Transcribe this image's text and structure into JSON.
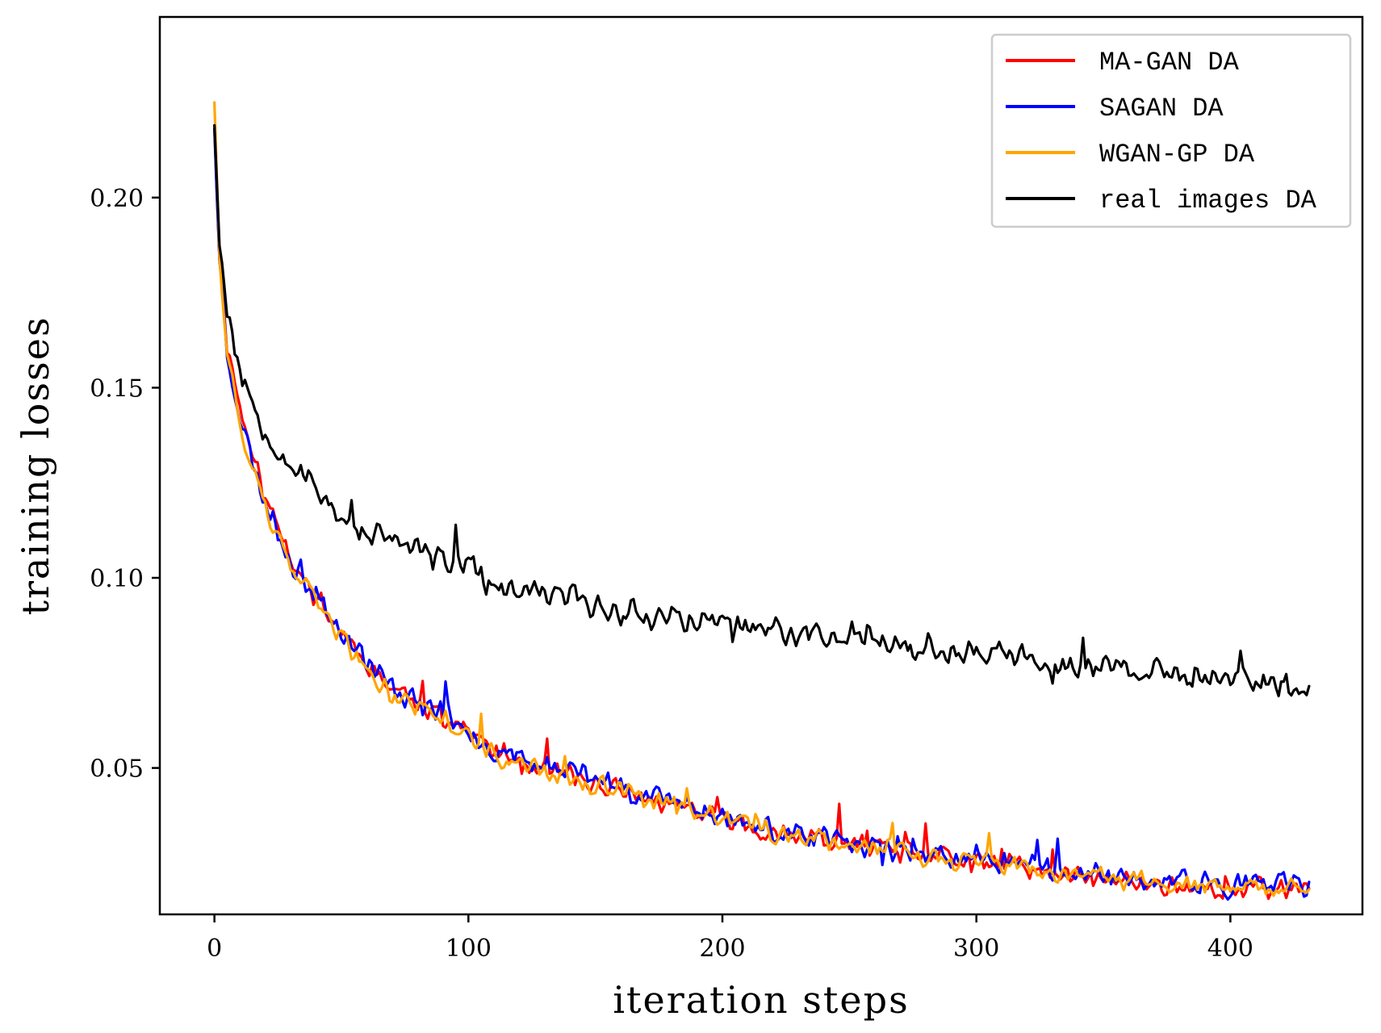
{
  "chart_data": {
    "type": "line",
    "title": "",
    "xlabel": "iteration steps",
    "ylabel": "training losses",
    "xlim": [
      -21.5,
      452
    ],
    "ylim": [
      0.0115,
      0.2475
    ],
    "xticks": [
      0,
      100,
      200,
      300,
      400
    ],
    "xtick_labels": [
      "0",
      "100",
      "200",
      "300",
      "400"
    ],
    "yticks": [
      0.05,
      0.1,
      0.15,
      0.2
    ],
    "ytick_labels": [
      "0.05",
      "0.10",
      "0.15",
      "0.20"
    ],
    "grid": false,
    "legend_position": "top-right",
    "n_points": 432,
    "series": [
      {
        "name": "MA-GAN DA",
        "color": "#ff0000",
        "anchors_x": [
          0,
          2,
          5,
          10,
          15,
          20,
          30,
          40,
          50,
          60,
          70,
          80,
          90,
          100,
          110,
          120,
          140,
          160,
          180,
          200,
          220,
          240,
          260,
          280,
          300,
          320,
          340,
          360,
          380,
          400,
          431
        ],
        "anchors_y": [
          0.218,
          0.185,
          0.162,
          0.145,
          0.132,
          0.121,
          0.106,
          0.095,
          0.086,
          0.078,
          0.071,
          0.068,
          0.064,
          0.06,
          0.054,
          0.052,
          0.048,
          0.044,
          0.04,
          0.037,
          0.033,
          0.031,
          0.029,
          0.027,
          0.025,
          0.024,
          0.021,
          0.02,
          0.019,
          0.018,
          0.019
        ],
        "noise": 0.0035,
        "seed": 11
      },
      {
        "name": "SAGAN DA",
        "color": "#0000ff",
        "anchors_x": [
          0,
          2,
          5,
          10,
          15,
          20,
          30,
          40,
          50,
          60,
          70,
          80,
          90,
          100,
          110,
          120,
          140,
          160,
          180,
          200,
          220,
          240,
          260,
          280,
          300,
          320,
          340,
          360,
          380,
          400,
          431
        ],
        "anchors_y": [
          0.218,
          0.184,
          0.16,
          0.143,
          0.13,
          0.12,
          0.105,
          0.095,
          0.087,
          0.078,
          0.071,
          0.068,
          0.065,
          0.061,
          0.054,
          0.053,
          0.049,
          0.045,
          0.041,
          0.038,
          0.033,
          0.031,
          0.03,
          0.027,
          0.026,
          0.025,
          0.022,
          0.021,
          0.02,
          0.019,
          0.019
        ],
        "noise": 0.004,
        "seed": 23
      },
      {
        "name": "WGAN-GP DA",
        "color": "#ffa500",
        "anchors_x": [
          0,
          2,
          5,
          10,
          15,
          20,
          30,
          40,
          50,
          60,
          70,
          80,
          90,
          100,
          110,
          120,
          140,
          160,
          180,
          200,
          220,
          240,
          260,
          280,
          300,
          320,
          340,
          360,
          380,
          400,
          431
        ],
        "anchors_y": [
          0.225,
          0.186,
          0.16,
          0.141,
          0.128,
          0.118,
          0.103,
          0.093,
          0.085,
          0.075,
          0.069,
          0.066,
          0.063,
          0.059,
          0.053,
          0.051,
          0.047,
          0.044,
          0.04,
          0.037,
          0.033,
          0.031,
          0.03,
          0.027,
          0.025,
          0.024,
          0.021,
          0.021,
          0.019,
          0.018,
          0.018
        ],
        "noise": 0.0033,
        "seed": 37
      },
      {
        "name": "real images DA",
        "color": "#000000",
        "anchors_x": [
          0,
          2,
          5,
          10,
          15,
          20,
          30,
          40,
          50,
          60,
          70,
          80,
          90,
          100,
          110,
          120,
          140,
          160,
          180,
          200,
          220,
          240,
          260,
          280,
          300,
          320,
          340,
          360,
          380,
          400,
          431
        ],
        "anchors_y": [
          0.219,
          0.19,
          0.17,
          0.155,
          0.146,
          0.139,
          0.13,
          0.124,
          0.116,
          0.112,
          0.11,
          0.107,
          0.105,
          0.103,
          0.097,
          0.096,
          0.095,
          0.091,
          0.09,
          0.088,
          0.086,
          0.085,
          0.085,
          0.081,
          0.081,
          0.079,
          0.077,
          0.076,
          0.074,
          0.074,
          0.071
        ],
        "noise": 0.0042,
        "seed": 53
      }
    ]
  }
}
